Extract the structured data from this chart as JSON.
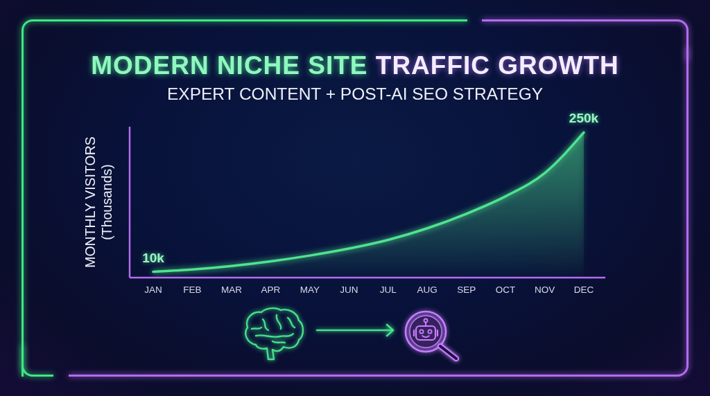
{
  "chart_data": {
    "type": "area",
    "title": "MODERN NICHE SITE TRAFFIC GROWTH",
    "subtitle": "EXPERT CONTENT + POST-AI SEO STRATEGY",
    "ylabel": "MONTHLY VISITORS (Thousands)",
    "categories": [
      "JAN",
      "FEB",
      "MAR",
      "APR",
      "MAY",
      "JUN",
      "JUL",
      "AUG",
      "SEP",
      "OCT",
      "NOV",
      "DEC"
    ],
    "values": [
      10,
      14,
      20,
      28,
      38,
      50,
      65,
      85,
      110,
      140,
      180,
      250
    ],
    "value_labels": [
      "10k",
      null,
      null,
      null,
      null,
      null,
      null,
      null,
      null,
      null,
      null,
      "250k"
    ],
    "color": "#4fe38f",
    "ylim": [
      0,
      260
    ],
    "tick_labels": "x"
  }
}
